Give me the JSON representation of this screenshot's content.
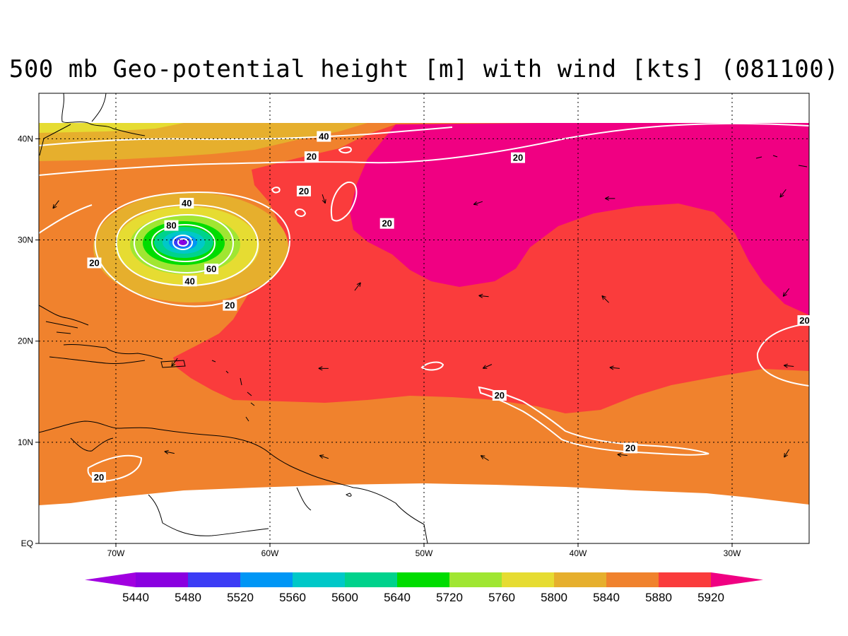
{
  "title": "500 mb Geo-potential height [m] with wind [kts] (081100)",
  "colors": {
    "bands": [
      "#a100e0",
      "#8a00e0",
      "#3c3cf5",
      "#0096f5",
      "#00c8c8",
      "#00d28c",
      "#00dc00",
      "#a0e632",
      "#e6dc32",
      "#e6af2d",
      "#f0822d",
      "#fa3c3c",
      "#f00082"
    ],
    "contour": "#ffffff",
    "coast": "#000000"
  },
  "axes": {
    "x_ticks": [
      {
        "value": -70,
        "label": "70W"
      },
      {
        "value": -60,
        "label": "60W"
      },
      {
        "value": -50,
        "label": "50W"
      },
      {
        "value": -40,
        "label": "40W"
      },
      {
        "value": -30,
        "label": "30W"
      }
    ],
    "y_ticks": [
      {
        "value": 0,
        "label": "EQ"
      },
      {
        "value": 10,
        "label": "10N"
      },
      {
        "value": 20,
        "label": "20N"
      },
      {
        "value": 30,
        "label": "30N"
      },
      {
        "value": 40,
        "label": "40N"
      }
    ],
    "lon_range": [
      -75,
      -25
    ],
    "lat_range": [
      0,
      44.5
    ],
    "grid": true
  },
  "colorbar": {
    "labels": [
      "5440",
      "5480",
      "5520",
      "5560",
      "5600",
      "5640",
      "5720",
      "5760",
      "5800",
      "5840",
      "5880",
      "5920"
    ]
  },
  "wind_contour_labels": [
    {
      "text": "40",
      "lon": -56.5,
      "lat": 40.2
    },
    {
      "text": "20",
      "lon": -57.3,
      "lat": 38.2
    },
    {
      "text": "20",
      "lon": -43.9,
      "lat": 38.1
    },
    {
      "text": "20",
      "lon": -57.8,
      "lat": 34.8
    },
    {
      "text": "40",
      "lon": -65.4,
      "lat": 33.6
    },
    {
      "text": "80",
      "lon": -66.4,
      "lat": 31.4
    },
    {
      "text": "20",
      "lon": -52.4,
      "lat": 31.6
    },
    {
      "text": "20",
      "lon": -71.4,
      "lat": 27.7
    },
    {
      "text": "60",
      "lon": -63.8,
      "lat": 27.1
    },
    {
      "text": "40",
      "lon": -65.2,
      "lat": 25.9
    },
    {
      "text": "20",
      "lon": -62.6,
      "lat": 23.5
    },
    {
      "text": "20",
      "lon": -25.3,
      "lat": 22.0
    },
    {
      "text": "20",
      "lon": -45.1,
      "lat": 14.6
    },
    {
      "text": "20",
      "lon": -36.6,
      "lat": 9.4
    },
    {
      "text": "20",
      "lon": -71.1,
      "lat": 6.5
    }
  ],
  "wind_arrows": [
    {
      "lon": -54.5,
      "lat": 25.0,
      "dir": [
        0.6,
        0.8
      ]
    },
    {
      "lon": -56.6,
      "lat": 34.5,
      "dir": [
        0.3,
        -0.9
      ]
    },
    {
      "lon": -46.2,
      "lat": 33.8,
      "dir": [
        -0.9,
        -0.3
      ]
    },
    {
      "lon": -37.6,
      "lat": 34.1,
      "dir": [
        -1,
        0
      ]
    },
    {
      "lon": -26.5,
      "lat": 35.0,
      "dir": [
        -0.6,
        -0.8
      ]
    },
    {
      "lon": -38.0,
      "lat": 23.8,
      "dir": [
        -0.7,
        0.7
      ]
    },
    {
      "lon": -26.3,
      "lat": 25.2,
      "dir": [
        -0.6,
        -0.8
      ]
    },
    {
      "lon": -45.8,
      "lat": 24.4,
      "dir": [
        -1,
        0.1
      ]
    },
    {
      "lon": -56.2,
      "lat": 17.3,
      "dir": [
        -1,
        0
      ]
    },
    {
      "lon": -45.6,
      "lat": 17.7,
      "dir": [
        -0.9,
        -0.4
      ]
    },
    {
      "lon": -37.3,
      "lat": 17.3,
      "dir": [
        -1,
        0.1
      ]
    },
    {
      "lon": -26.0,
      "lat": 17.5,
      "dir": [
        -1,
        0.1
      ]
    },
    {
      "lon": -56.2,
      "lat": 8.4,
      "dir": [
        -0.9,
        0.3
      ]
    },
    {
      "lon": -45.8,
      "lat": 8.2,
      "dir": [
        -0.8,
        0.5
      ]
    },
    {
      "lon": -36.8,
      "lat": 8.7,
      "dir": [
        -1,
        0.1
      ]
    },
    {
      "lon": -26.3,
      "lat": 9.3,
      "dir": [
        -0.5,
        -0.8
      ]
    },
    {
      "lon": -66.2,
      "lat": 8.9,
      "dir": [
        -1,
        0.2
      ]
    },
    {
      "lon": -66.0,
      "lat": 18.3,
      "dir": [
        -0.6,
        -0.8
      ]
    },
    {
      "lon": -73.7,
      "lat": 33.9,
      "dir": [
        -0.6,
        -0.8
      ]
    }
  ]
}
